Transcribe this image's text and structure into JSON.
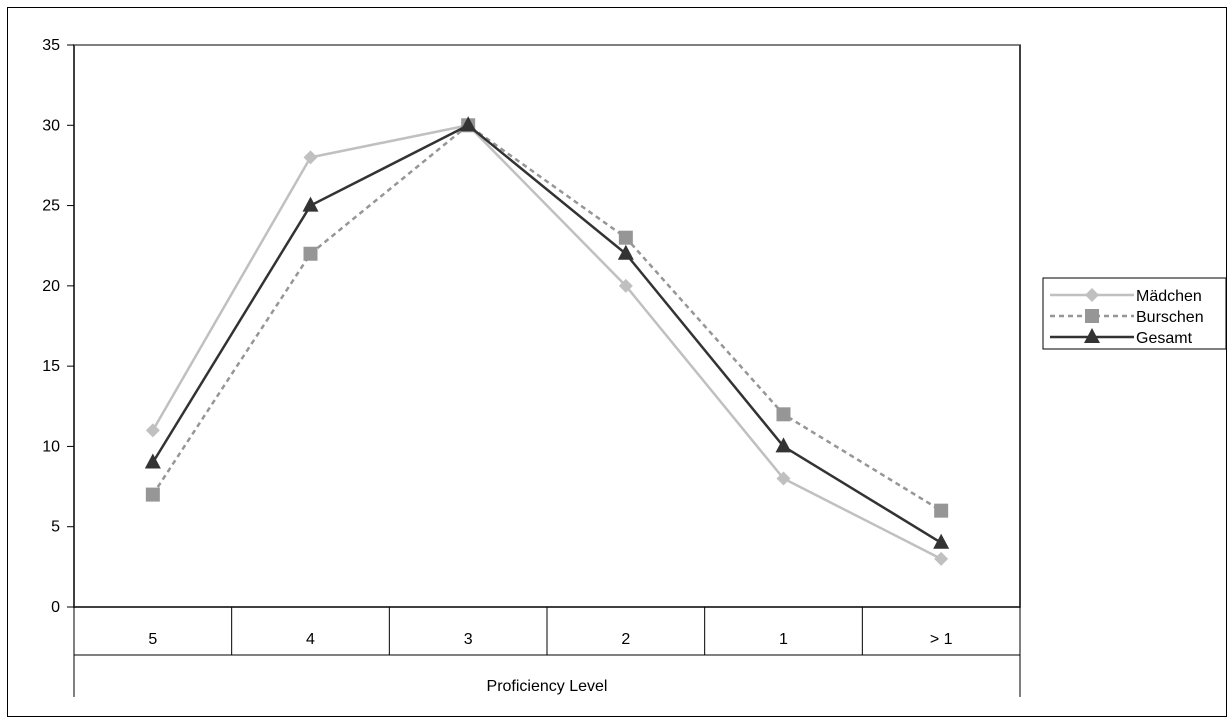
{
  "chart_data": {
    "type": "line",
    "title": "",
    "xlabel": "Proficiency Level",
    "ylabel": "",
    "categories": [
      "5",
      "4",
      "3",
      "2",
      "1",
      "> 1"
    ],
    "ylim": [
      0,
      35
    ],
    "yticks": [
      0,
      5,
      10,
      15,
      20,
      25,
      30,
      35
    ],
    "grid": false,
    "legend_position": "right",
    "series": [
      {
        "name": "Mädchen",
        "values": [
          11,
          28,
          30,
          20,
          8,
          3
        ],
        "color": "#c0c0c0",
        "marker": "diamond",
        "dash": "solid"
      },
      {
        "name": "Burschen",
        "values": [
          7,
          22,
          30,
          23,
          12,
          6
        ],
        "color": "#969696",
        "marker": "square",
        "dash": "dotted"
      },
      {
        "name": "Gesamt",
        "values": [
          9,
          25,
          30,
          22,
          10,
          4
        ],
        "color": "#333333",
        "marker": "triangle",
        "dash": "solid"
      }
    ]
  }
}
